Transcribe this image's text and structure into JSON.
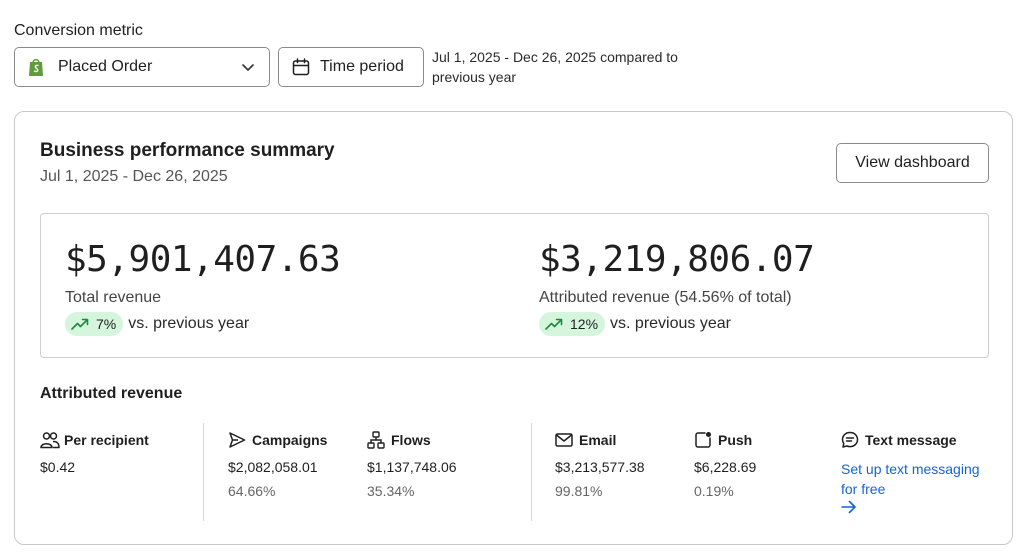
{
  "conversion_metric": {
    "label": "Conversion metric",
    "selected": "Placed Order",
    "selected_icon": "shopify-bag-icon"
  },
  "time_period": {
    "button_label": "Time period",
    "description": "Jul 1, 2025 - Dec 26, 2025 compared to previous year"
  },
  "summary": {
    "title": "Business performance summary",
    "date_range": "Jul 1, 2025 - Dec 26, 2025",
    "view_dashboard_label": "View dashboard",
    "total_revenue": {
      "value": "$5,901,407.63",
      "label": "Total revenue",
      "change": "7%",
      "change_text": "vs. previous year",
      "trend": "up"
    },
    "attributed_total": {
      "value": "$3,219,806.07",
      "label": "Attributed revenue (54.56% of total)",
      "change": "12%",
      "change_text": "vs. previous year",
      "trend": "up"
    }
  },
  "attributed_revenue": {
    "heading": "Attributed revenue",
    "per_recipient": {
      "label": "Per recipient",
      "icon": "people-icon",
      "value": "$0.42"
    },
    "campaigns": {
      "label": "Campaigns",
      "icon": "send-icon",
      "value": "$2,082,058.01",
      "percent": "64.66%"
    },
    "flows": {
      "label": "Flows",
      "icon": "flow-icon",
      "value": "$1,137,748.06",
      "percent": "35.34%"
    },
    "email": {
      "label": "Email",
      "icon": "mail-icon",
      "value": "$3,213,577.38",
      "percent": "99.81%"
    },
    "push": {
      "label": "Push",
      "icon": "push-notification-icon",
      "value": "$6,228.69",
      "percent": "0.19%"
    },
    "text_message": {
      "label": "Text message",
      "icon": "chat-bubble-icon",
      "link_text": "Set up text messaging for free"
    }
  },
  "colors": {
    "trend_pill_bg": "#d5f5dc",
    "trend_up": "#1e8a3c",
    "link": "#1663d6",
    "shopify_green": "#5e9e3a"
  }
}
